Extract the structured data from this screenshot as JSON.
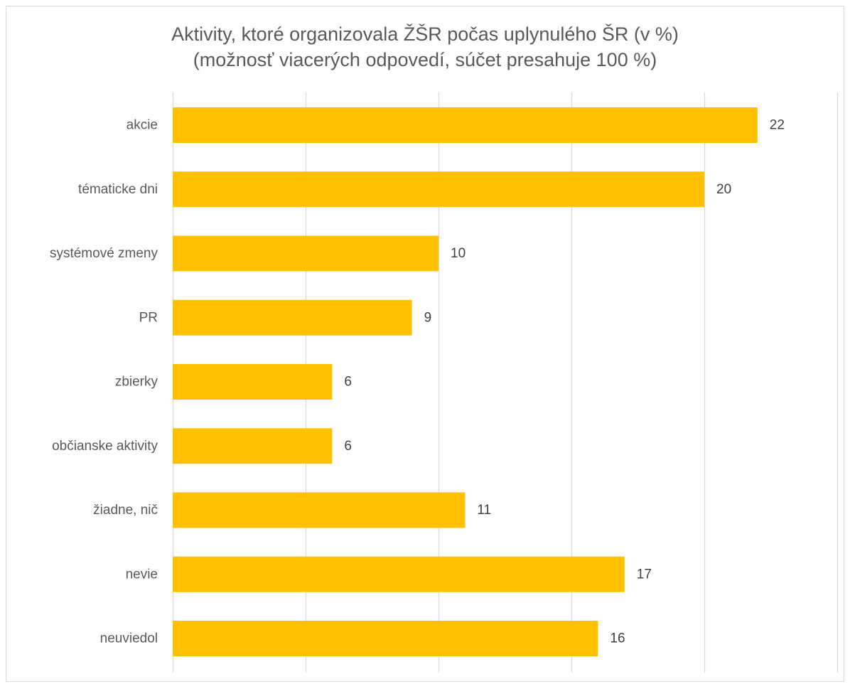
{
  "chart_data": {
    "type": "bar",
    "orientation": "horizontal",
    "title": "Aktivity, ktoré organizovala ŽŠR počas uplynulého ŠR (v %)",
    "subtitle": "(možnosť viacerých odpovedí, súčet presahuje 100 %)",
    "categories": [
      "akcie",
      "tématicke dni",
      "systémové zmeny",
      "PR",
      "zbierky",
      "občianske aktivity",
      "žiadne, nič",
      "nevie",
      "neuviedol"
    ],
    "values": [
      22,
      20,
      10,
      9,
      6,
      6,
      11,
      17,
      16
    ],
    "xlim": [
      0,
      25
    ],
    "grid": true,
    "legend": false,
    "bar_color": "#FFC000",
    "grid_color": "#d9d9d9"
  }
}
